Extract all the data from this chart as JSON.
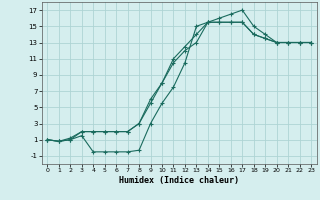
{
  "xlabel": "Humidex (Indice chaleur)",
  "ylabel": "",
  "bg_color": "#d5eeee",
  "grid_color": "#aed4d4",
  "line_color": "#1a6b5e",
  "xlim": [
    -0.5,
    23.5
  ],
  "ylim": [
    -2,
    18
  ],
  "yticks": [
    -1,
    1,
    3,
    5,
    7,
    9,
    11,
    13,
    15,
    17
  ],
  "xticks": [
    0,
    1,
    2,
    3,
    4,
    5,
    6,
    7,
    8,
    9,
    10,
    11,
    12,
    13,
    14,
    15,
    16,
    17,
    18,
    19,
    20,
    21,
    22,
    23
  ],
  "curve1_x": [
    0,
    1,
    2,
    3,
    4,
    5,
    6,
    7,
    8,
    9,
    10,
    11,
    12,
    13,
    14,
    15,
    16,
    17,
    18,
    19,
    20,
    21,
    22,
    23
  ],
  "curve1_y": [
    1,
    0.8,
    1.2,
    2,
    2,
    2,
    2,
    2,
    3,
    6,
    8,
    11,
    12.5,
    14,
    15.5,
    15.5,
    15.5,
    15.5,
    14,
    13.5,
    13,
    13,
    13,
    13
  ],
  "curve2_x": [
    0,
    1,
    2,
    3,
    4,
    5,
    6,
    7,
    8,
    9,
    10,
    11,
    12,
    13,
    14,
    15,
    16,
    17,
    18,
    19,
    20,
    21,
    22,
    23
  ],
  "curve2_y": [
    1,
    0.8,
    1,
    1.5,
    -0.5,
    -0.5,
    -0.5,
    -0.5,
    -0.3,
    3,
    5.5,
    7.5,
    10.5,
    15,
    15.5,
    16,
    16.5,
    17,
    15,
    14,
    13,
    13,
    13,
    13
  ],
  "curve3_x": [
    0,
    1,
    2,
    3,
    4,
    5,
    6,
    7,
    8,
    9,
    10,
    11,
    12,
    13,
    14,
    15,
    16,
    17,
    18,
    19,
    20,
    21,
    22,
    23
  ],
  "curve3_y": [
    1,
    0.8,
    1,
    2,
    2,
    2,
    2,
    2,
    3,
    5.5,
    8,
    10.5,
    12,
    13,
    15.5,
    15.5,
    15.5,
    15.5,
    14,
    13.5,
    13,
    13,
    13,
    13
  ]
}
